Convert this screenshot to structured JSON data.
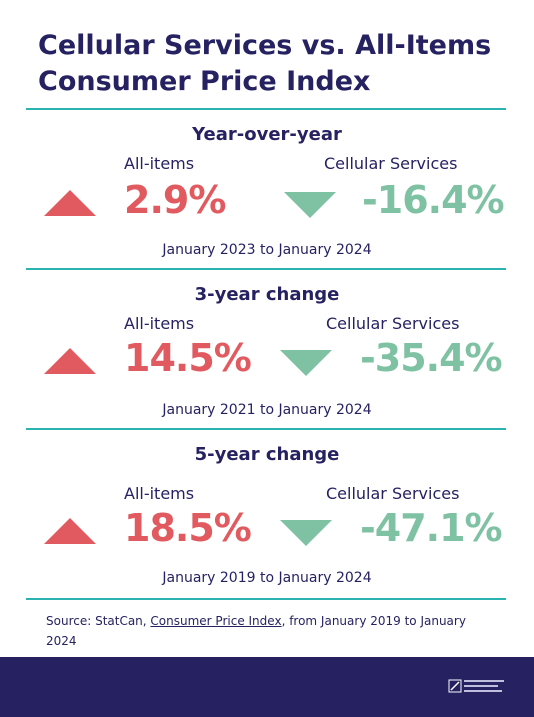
{
  "title": "Cellular Services vs. All-Items Consumer Price Index",
  "sections": [
    {
      "title": "Year-over-year",
      "left_label": "All-items",
      "left_value": "2.9%",
      "right_label": "Cellular Services",
      "right_value": "-16.4%",
      "period": "January 2023 to January 2024"
    },
    {
      "title": "3-year change",
      "left_label": "All-items",
      "left_value": "14.5%",
      "right_label": "Cellular Services",
      "right_value": "-35.4%",
      "period": "January 2021 to January 2024"
    },
    {
      "title": "5-year change",
      "left_label": "All-items",
      "left_value": "18.5%",
      "right_label": "Cellular Services",
      "right_value": "-47.1%",
      "period": "January 2019 to January 2024"
    }
  ],
  "source": {
    "prefix": "Source: StatCan, ",
    "link_text": "Consumer Price Index",
    "suffix": ", from January 2019 to January 2024"
  },
  "colors": {
    "navy": "#262262",
    "teal_rule": "#2bb3b1",
    "increase_red": "#e05a5f",
    "decrease_green": "#7fc2a3"
  },
  "icons": {
    "increase": "triangle-up-icon",
    "decrease": "triangle-down-icon",
    "footer_logo": "logo-icon"
  },
  "chart_data": [
    {
      "type": "table",
      "title": "Year-over-year",
      "categories": [
        "All-items",
        "Cellular Services"
      ],
      "values": [
        2.9,
        -16.4
      ],
      "period": "January 2023 to January 2024"
    },
    {
      "type": "table",
      "title": "3-year change",
      "categories": [
        "All-items",
        "Cellular Services"
      ],
      "values": [
        14.5,
        -35.4
      ],
      "period": "January 2021 to January 2024"
    },
    {
      "type": "table",
      "title": "5-year change",
      "categories": [
        "All-items",
        "Cellular Services"
      ],
      "values": [
        18.5,
        -47.1
      ],
      "period": "January 2019 to January 2024"
    }
  ]
}
